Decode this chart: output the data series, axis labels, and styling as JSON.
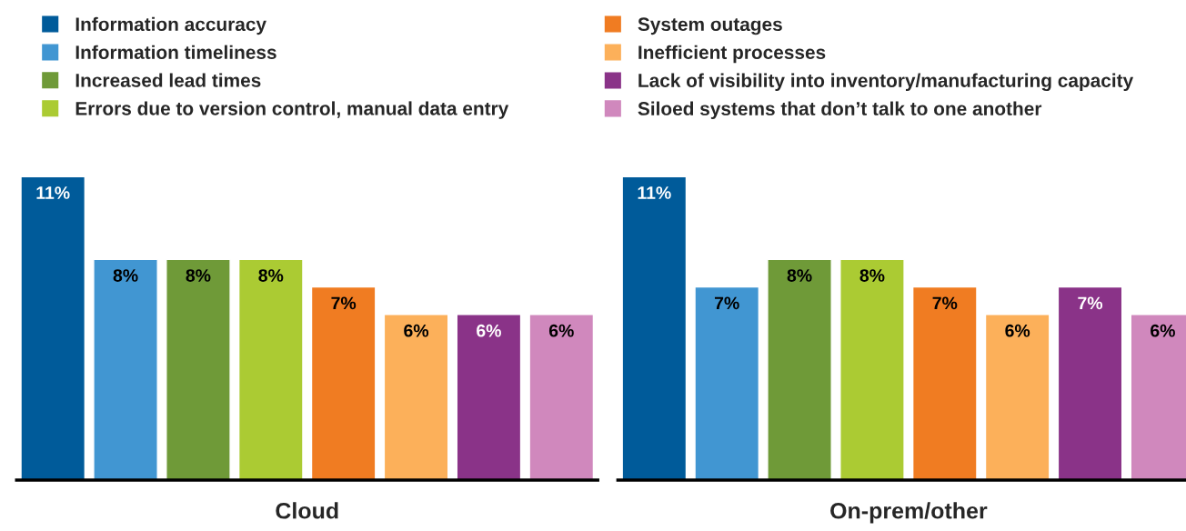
{
  "chart_data": [
    {
      "type": "bar",
      "xlabel": "Cloud",
      "categories": [
        null
      ],
      "legend": "top",
      "series": [
        {
          "name": "Information accuracy",
          "color": "#005b9a",
          "values": [
            11
          ],
          "value_labels": [
            "11%"
          ]
        },
        {
          "name": "Information timeliness",
          "color": "#4196d2",
          "values": [
            8
          ],
          "value_labels": [
            "8%"
          ]
        },
        {
          "name": "Increased lead times",
          "color": "#6f9a38",
          "values": [
            8
          ],
          "value_labels": [
            "8%"
          ]
        },
        {
          "name": "Errors due to version control, manual data entry",
          "color": "#abcb33",
          "values": [
            8
          ],
          "value_labels": [
            "8%"
          ]
        },
        {
          "name": "System outages",
          "color": "#f07c22",
          "values": [
            7
          ],
          "value_labels": [
            "7%"
          ]
        },
        {
          "name": "Inefficient processes",
          "color": "#fcb05a",
          "values": [
            6
          ],
          "value_labels": [
            "6%"
          ]
        },
        {
          "name": "Lack of visibility into inventory/manufacturing capacity",
          "color": "#8a3388",
          "values": [
            6
          ],
          "value_labels": [
            "6%"
          ]
        },
        {
          "name": "Siloed systems that don’t talk to one another",
          "color": "#d088bd",
          "values": [
            6
          ],
          "value_labels": [
            "6%"
          ]
        }
      ]
    },
    {
      "type": "bar",
      "xlabel": "On-prem/other",
      "categories": [
        null
      ],
      "series": [
        {
          "color": "#005b9a",
          "values": [
            11
          ],
          "value_labels": [
            "11%"
          ]
        },
        {
          "color": "#4196d2",
          "values": [
            7
          ],
          "value_labels": [
            "7%"
          ]
        },
        {
          "color": "#6f9a38",
          "values": [
            8
          ],
          "value_labels": [
            "8%"
          ]
        },
        {
          "color": "#abcb33",
          "values": [
            8
          ],
          "value_labels": [
            "8%"
          ]
        },
        {
          "color": "#f07c22",
          "values": [
            7
          ],
          "value_labels": [
            "7%"
          ]
        },
        {
          "color": "#fcb05a",
          "values": [
            6
          ],
          "value_labels": [
            "6%"
          ]
        },
        {
          "color": "#8a3388",
          "values": [
            7
          ],
          "value_labels": [
            "7%"
          ]
        },
        {
          "color": "#d088bd",
          "values": [
            6
          ],
          "value_labels": [
            "6%"
          ]
        }
      ]
    }
  ]
}
